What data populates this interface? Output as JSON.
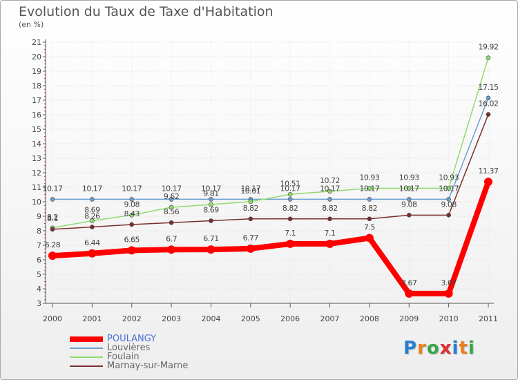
{
  "title": "Evolution du Taux de Taxe d'Habitation",
  "unit": "(en %)",
  "brand": {
    "text": "Proxiti",
    "letter_colors": [
      "#2a7fd1",
      "#e8801e",
      "#3aa54a",
      "#e03030",
      "#2a7fd1",
      "#e8801e",
      "#3aa54a"
    ]
  },
  "chart_data": {
    "type": "line",
    "title": "Evolution du Taux de Taxe d'Habitation",
    "ylabel": "(en %)",
    "xlabel": "",
    "ylim": [
      3,
      21
    ],
    "yticks": [
      3,
      4,
      5,
      6,
      7,
      8,
      9,
      10,
      11,
      12,
      13,
      14,
      15,
      16,
      17,
      18,
      19,
      20,
      21
    ],
    "categories": [
      "2000",
      "2001",
      "2002",
      "2003",
      "2004",
      "2005",
      "2006",
      "2007",
      "2008",
      "2009",
      "2010",
      "2011"
    ],
    "series": [
      {
        "name": "POULANGY",
        "color": "#ff0000",
        "emphasis": true,
        "values": [
          6.28,
          6.44,
          6.65,
          6.7,
          6.71,
          6.77,
          7.1,
          7.1,
          7.5,
          3.67,
          3.67,
          11.37
        ],
        "labels": [
          "6.28",
          "6.44",
          "6.65",
          "6.7",
          "6.71",
          "6.77",
          "7.1",
          "7.1",
          "7.5",
          "3.67",
          "3.67",
          "11.37"
        ]
      },
      {
        "name": "Louvières",
        "color": "#6a9ed0",
        "emphasis": false,
        "values": [
          10.17,
          10.17,
          10.17,
          10.17,
          10.17,
          10.17,
          10.17,
          10.17,
          10.17,
          10.17,
          10.17,
          17.15
        ],
        "labels": [
          "10.17",
          "10.17",
          "10.17",
          "10.17",
          "10.17",
          "10.17",
          "10.17",
          "10.17",
          "10.17",
          "10.17",
          "10.17",
          "17.15"
        ]
      },
      {
        "name": "Foulain",
        "color": "#8fdb6e",
        "emphasis": false,
        "values": [
          8.2,
          8.69,
          9.08,
          9.62,
          9.81,
          10.01,
          10.51,
          10.72,
          10.93,
          10.93,
          10.93,
          19.92
        ],
        "labels": [
          "8.2",
          "8.69",
          "9.08",
          "9.62",
          "9.81",
          "10.01",
          "10.51",
          "10.72",
          "10.93",
          "10.93",
          "10.93",
          "19.92"
        ]
      },
      {
        "name": "Marnay-sur-Marne",
        "color": "#7a2e2e",
        "emphasis": false,
        "values": [
          8.1,
          8.26,
          8.43,
          8.56,
          8.69,
          8.82,
          8.82,
          8.82,
          8.82,
          9.08,
          9.08,
          16.02
        ],
        "labels": [
          "8.1",
          "8.26",
          "8.43",
          "8.56",
          "8.69",
          "8.82",
          "8.82",
          "8.82",
          "8.82",
          "9.08",
          "9.08",
          "16.02"
        ]
      }
    ]
  }
}
